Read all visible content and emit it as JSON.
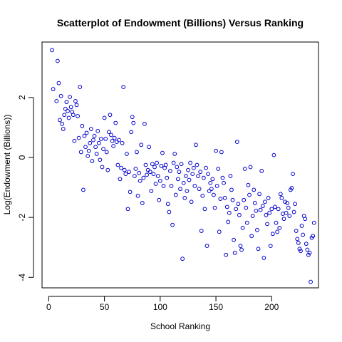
{
  "chart_data": {
    "type": "scatter",
    "title": "Scatterplot of Endowment (Billions) Versus Ranking",
    "xlabel": "School Ranking",
    "ylabel": "Log(Endowment (Billions))",
    "xlim": [
      -6,
      242
    ],
    "ylim": [
      -4.35,
      3.85
    ],
    "xticks": [
      0,
      50,
      100,
      150,
      200
    ],
    "yticks": [
      -4,
      -2,
      0,
      2
    ],
    "grid": false,
    "legend": "none",
    "point_color": "#0000CD",
    "marker": "open-circle",
    "series": [
      {
        "x": [
          3,
          4,
          7,
          8,
          9,
          10,
          11,
          12,
          13,
          14,
          15,
          16,
          17,
          18,
          19,
          20,
          21,
          22,
          23,
          24,
          25,
          26,
          27,
          28,
          29,
          30,
          31,
          32,
          33,
          34,
          35,
          36,
          37,
          38,
          39,
          40,
          41,
          42,
          43,
          44,
          45,
          46,
          47,
          48,
          49,
          50,
          51,
          52,
          53,
          54,
          55,
          56,
          57,
          58,
          59,
          60,
          61,
          62,
          63,
          64,
          65,
          66,
          67,
          68,
          69,
          70,
          71,
          72,
          73,
          74,
          75,
          76,
          77,
          78,
          79,
          80,
          81,
          82,
          83,
          84,
          85,
          86,
          87,
          88,
          89,
          90,
          91,
          92,
          93,
          94,
          95,
          96,
          97,
          98,
          99,
          100,
          101,
          102,
          103,
          104,
          105,
          106,
          107,
          108,
          109,
          110,
          111,
          112,
          113,
          114,
          115,
          116,
          117,
          118,
          119,
          120,
          121,
          122,
          123,
          124,
          125,
          126,
          127,
          128,
          129,
          130,
          131,
          132,
          133,
          134,
          135,
          136,
          137,
          138,
          139,
          140,
          141,
          142,
          143,
          144,
          145,
          146,
          147,
          148,
          149,
          150,
          151,
          152,
          153,
          154,
          155,
          156,
          157,
          158,
          159,
          160,
          161,
          162,
          163,
          164,
          165,
          166,
          167,
          168,
          169,
          170,
          171,
          172,
          173,
          174,
          175,
          176,
          177,
          178,
          179,
          180,
          181,
          182,
          183,
          184,
          185,
          186,
          187,
          188,
          189,
          190,
          191,
          192,
          193,
          194,
          195,
          196,
          197,
          198,
          199,
          200,
          201,
          202,
          203,
          204,
          205,
          206,
          207,
          208,
          209,
          210,
          211,
          212,
          213,
          214,
          215,
          216,
          217,
          218,
          219,
          220,
          221,
          222,
          223,
          224,
          225,
          226,
          227,
          228,
          229,
          230,
          231,
          232,
          233,
          234,
          235,
          236,
          237,
          238
        ],
        "y": [
          3.58,
          2.28,
          1.88,
          3.22,
          2.48,
          1.25,
          2.05,
          1.12,
          0.95,
          1.42,
          1.62,
          1.85,
          1.55,
          1.32,
          2.02,
          1.68,
          1.52,
          1.42,
          0.55,
          1.88,
          1.75,
          1.38,
          0.65,
          2.35,
          0.18,
          1.05,
          -1.08,
          0.72,
          0.35,
          0.82,
          0.05,
          0.22,
          0.48,
          0.95,
          -0.12,
          0.58,
          0.72,
          0.35,
          0.12,
          0.88,
          0.48,
          -0.08,
          0.62,
          -0.32,
          0.28,
          1.32,
          0.62,
          0.18,
          -0.42,
          0.85,
          1.42,
          0.75,
          0.55,
          0.38,
          0.65,
          1.15,
          0.52,
          -0.25,
          0.58,
          -0.72,
          -0.35,
          0.48,
          2.35,
          -0.42,
          -0.55,
          0.12,
          -1.72,
          -0.48,
          -1.15,
          0.85,
          1.35,
          1.15,
          -0.62,
          -0.38,
          0.18,
          -1.28,
          -0.52,
          -0.78,
          0.42,
          -1.52,
          -0.68,
          1.12,
          -0.25,
          -0.58,
          -0.42,
          0.35,
          -0.48,
          -1.12,
          -0.22,
          -0.55,
          -0.32,
          -0.88,
          -0.18,
          -0.62,
          -1.42,
          -0.78,
          -0.28,
          0.15,
          -0.95,
          -0.35,
          -0.25,
          -0.68,
          -1.55,
          -1.82,
          -0.45,
          -0.95,
          -2.25,
          -0.18,
          0.12,
          -1.25,
          -0.32,
          -0.72,
          -0.48,
          -1.05,
          -0.22,
          -3.38,
          -0.85,
          -1.35,
          -0.62,
          -1.12,
          -0.42,
          -0.75,
          -0.18,
          -1.48,
          -0.55,
          -0.35,
          -0.95,
          0.42,
          -0.25,
          -0.62,
          -1.05,
          -0.48,
          -2.45,
          -1.28,
          -0.68,
          -1.72,
          -0.35,
          -2.95,
          -0.55,
          -1.12,
          -0.85,
          -1.05,
          -0.72,
          -1.25,
          -1.68,
          0.22,
          -0.95,
          -0.38,
          -2.48,
          -1.38,
          0.18,
          -0.68,
          -0.85,
          -1.35,
          -3.25,
          -1.65,
          -2.15,
          -1.85,
          -0.62,
          -1.08,
          -1.42,
          -2.75,
          -3.18,
          -1.72,
          0.52,
          -1.55,
          -1.92,
          -2.95,
          -3.08,
          -2.35,
          -1.42,
          -0.38,
          -1.68,
          -2.18,
          -0.92,
          -1.25,
          -0.32,
          -2.62,
          -1.95,
          -1.08,
          -1.52,
          -1.78,
          -2.42,
          -3.05,
          -1.22,
          -1.75,
          -0.45,
          -1.62,
          -3.35,
          -1.48,
          -1.92,
          -2.22,
          -1.35,
          -1.85,
          -2.95,
          -1.72,
          -2.55,
          0.08,
          -1.65,
          -2.18,
          -2.48,
          -1.72,
          -2.35,
          -1.22,
          -1.35,
          -1.88,
          -2.05,
          -1.48,
          -1.85,
          -1.52,
          -1.68,
          -1.95,
          -1.08,
          -1.02,
          -0.55,
          -1.82,
          -1.55,
          -2.45,
          -2.72,
          -2.85,
          -3.05,
          -3.12,
          -2.28,
          -2.58,
          -1.95,
          -2.05,
          -2.88,
          -3.08,
          -3.25,
          -3.18,
          -4.15,
          -2.68,
          -2.62,
          -2.18
        ]
      }
    ]
  }
}
